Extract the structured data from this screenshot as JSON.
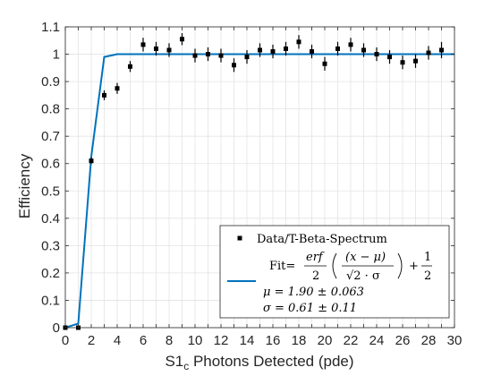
{
  "chart_data": {
    "type": "scatter",
    "xlabel_main": "S1",
    "xlabel_sub": "c",
    "xlabel_rest": " Photons Detected (pde)",
    "ylabel": "Efficiency",
    "xlim": [
      0,
      30
    ],
    "ylim": [
      0,
      1.1
    ],
    "xticks": [
      0,
      1,
      2,
      3,
      4,
      5,
      6,
      7,
      8,
      9,
      10,
      11,
      12,
      13,
      14,
      15,
      16,
      17,
      18,
      19,
      20,
      21,
      22,
      23,
      24,
      25,
      26,
      27,
      28,
      29,
      30
    ],
    "yticks": [
      0,
      0.1,
      0.2,
      0.3,
      0.4,
      0.5,
      0.6,
      0.7,
      0.8,
      0.9,
      1,
      1.1
    ],
    "ytick_labels": [
      "0",
      "0.1",
      "0.2",
      "0.3",
      "0.4",
      "0.5",
      "0.6",
      "0.7",
      "0.8",
      "0.9",
      "1",
      "1.1"
    ],
    "grid": true,
    "legend_position": "bottom-right",
    "series": [
      {
        "name": "Data/T-Beta-Spectrum",
        "kind": "points-with-errorbars",
        "color": "#000000",
        "x": [
          0,
          1,
          2,
          3,
          4,
          5,
          6,
          7,
          8,
          9,
          10,
          11,
          12,
          13,
          14,
          15,
          16,
          17,
          18,
          19,
          20,
          21,
          22,
          23,
          24,
          25,
          26,
          27,
          28,
          29
        ],
        "y": [
          0.0,
          0.0,
          0.61,
          0.85,
          0.875,
          0.955,
          1.035,
          1.02,
          1.015,
          1.055,
          0.995,
          1.0,
          0.995,
          0.96,
          0.99,
          1.015,
          1.01,
          1.02,
          1.045,
          1.01,
          0.965,
          1.02,
          1.035,
          1.015,
          1.0,
          0.99,
          0.97,
          0.975,
          1.005,
          1.015
        ],
        "err": [
          0.0,
          0.0,
          0.012,
          0.018,
          0.02,
          0.02,
          0.025,
          0.025,
          0.025,
          0.022,
          0.025,
          0.025,
          0.025,
          0.025,
          0.025,
          0.025,
          0.025,
          0.025,
          0.025,
          0.025,
          0.025,
          0.025,
          0.025,
          0.025,
          0.025,
          0.025,
          0.025,
          0.025,
          0.025,
          0.03
        ]
      },
      {
        "name": "Fit",
        "kind": "line",
        "color": "#0072bd",
        "x": [
          0,
          1,
          2,
          3,
          4,
          5,
          6,
          7,
          8,
          9,
          10,
          11,
          12,
          13,
          14,
          15,
          16,
          17,
          18,
          19,
          20,
          21,
          22,
          23,
          24,
          25,
          26,
          27,
          28,
          29,
          30
        ],
        "y": [
          0.0,
          0.015,
          0.625,
          0.99,
          1.0,
          1.0,
          1.0,
          1.0,
          1.0,
          1.0,
          1.0,
          1.0,
          1.0,
          1.0,
          1.0,
          1.0,
          1.0,
          1.0,
          1.0,
          1.0,
          1.0,
          1.0,
          1.0,
          1.0,
          1.0,
          1.0,
          1.0,
          1.0,
          1.0,
          1.0,
          1.0
        ]
      }
    ],
    "legend": {
      "data_label": "Data/T-Beta-Spectrum",
      "fit_prefix": "Fit=",
      "erf_text": "erf",
      "two_text": "2",
      "x_minus_mu": "(x − μ)",
      "sqrt2": "√2 · σ",
      "plus": "+",
      "one": "1",
      "two_b": "2",
      "mu_text": "μ = 1.90 ± 0.063",
      "sigma_text": "σ = 0.61 ± 0.11"
    }
  }
}
